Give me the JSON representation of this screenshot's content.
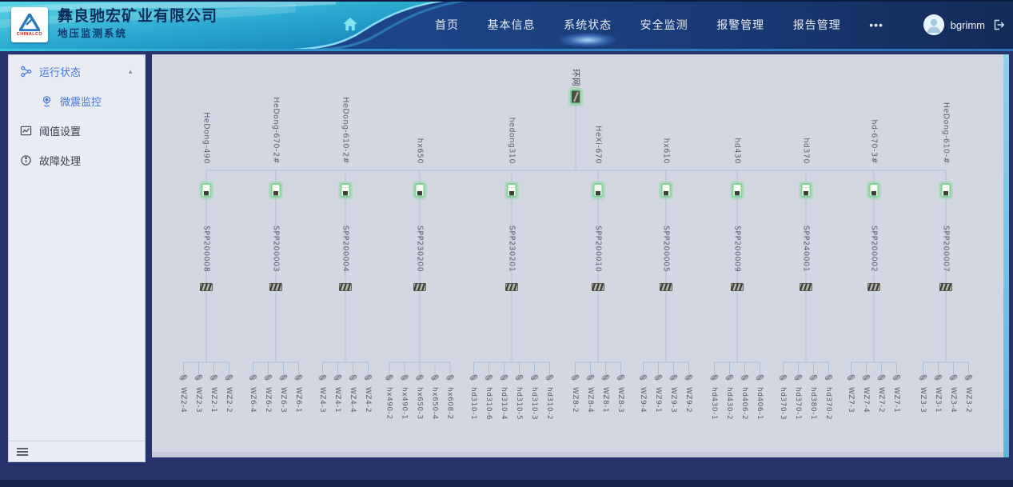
{
  "header": {
    "logo_text": "CHINALCO",
    "company_name": "彝良驰宏矿业有限公司",
    "system_name": "地压监测系统",
    "nav_items": [
      {
        "label": "首页",
        "name": "nav-home",
        "active": false
      },
      {
        "label": "基本信息",
        "name": "nav-basic-info",
        "active": false
      },
      {
        "label": "系统状态",
        "name": "nav-system-status",
        "active": true
      },
      {
        "label": "安全监测",
        "name": "nav-safety-monitoring",
        "active": false
      },
      {
        "label": "报警管理",
        "name": "nav-alarm-management",
        "active": false
      },
      {
        "label": "报告管理",
        "name": "nav-report-management",
        "active": false
      },
      {
        "label": "•••",
        "name": "nav-more",
        "active": false
      }
    ],
    "username": "bgrimm"
  },
  "sidebar": {
    "items": [
      {
        "label": "运行状态",
        "name": "sidebar-item-running-status",
        "icon": "nodes-icon",
        "blue": true,
        "expanded": true,
        "children": [
          {
            "label": "微震监控",
            "name": "sidebar-item-microseismic-monitoring",
            "icon": "webcam-icon",
            "blue": true,
            "active": true
          }
        ]
      },
      {
        "label": "阈值设置",
        "name": "sidebar-item-threshold-settings",
        "icon": "chart-icon",
        "blue": false
      },
      {
        "label": "故障处理",
        "name": "sidebar-item-fault-handling",
        "icon": "info-icon",
        "blue": false
      }
    ]
  },
  "topology": {
    "root_label": "环网",
    "stations": [
      {
        "name": "HeDong-490",
        "spp": "SPP200008",
        "sensors": [
          "WZ2-4",
          "WZ2-3",
          "WZ2-1",
          "WZ2-2"
        ]
      },
      {
        "name": "HeDong-670-2#",
        "spp": "SPP200003",
        "sensors": [
          "WZ6-4",
          "WZ6-2",
          "WZ6-3",
          "WZ6-1"
        ]
      },
      {
        "name": "HeDong-610-2#",
        "spp": "SPP200004",
        "sensors": [
          "WZ4-3",
          "WZ4-1",
          "WZ4-4",
          "WZ4-2"
        ]
      },
      {
        "name": "hx650",
        "spp": "SPP230200",
        "sensors": [
          "hx490-2",
          "hx490-1",
          "hx650-3",
          "hx650-4",
          "hx608-2"
        ]
      },
      {
        "name": "hedong310",
        "spp": "SPP230201",
        "sensors": [
          "hd310-1",
          "hd310-6",
          "hd310-4",
          "hd310-5",
          "hd310-3",
          "hd310-2"
        ]
      },
      {
        "name": "HeXi-670",
        "spp": "SPP200010",
        "sensors": [
          "WZ8-2",
          "WZ8-4",
          "WZ8-1",
          "WZ8-3"
        ]
      },
      {
        "name": "hx610",
        "spp": "SPP200005",
        "sensors": [
          "WZ9-4",
          "WZ9-1",
          "WZ9-3",
          "WZ9-2"
        ]
      },
      {
        "name": "hd430",
        "spp": "SPP200009",
        "sensors": [
          "hd430-1",
          "hd430-2",
          "hd406-2",
          "hd406-1"
        ]
      },
      {
        "name": "hd370",
        "spp": "SPP240001",
        "sensors": [
          "hd370-3",
          "hd370-1",
          "hd380-1",
          "hd370-2"
        ]
      },
      {
        "name": "hd-670-3#",
        "spp": "SPP200002",
        "sensors": [
          "WZ7-3",
          "WZ7-4",
          "WZ7-2",
          "WZ7-1"
        ]
      },
      {
        "name": "HeDong-610-#",
        "spp": "SPP200007",
        "sensors": [
          "WZ3-3",
          "WZ3-1",
          "WZ3-4",
          "WZ3-2"
        ]
      }
    ]
  },
  "colors": {
    "accent_cyan": "#38cade",
    "active_blue": "#4478d8",
    "panel_bg": "#d3d7e2",
    "connector_line": "#a9c0d8",
    "device_green": "#7ed694",
    "header_navy": "#1a3a76"
  }
}
